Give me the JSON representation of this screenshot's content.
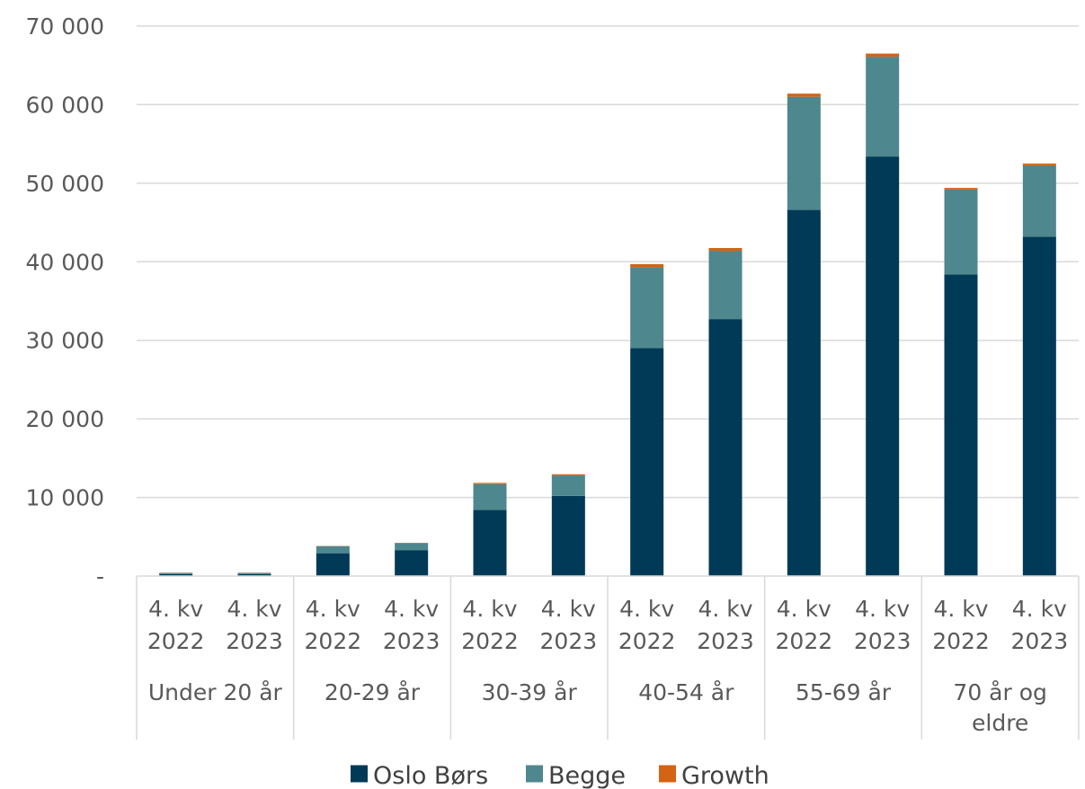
{
  "chart_data": {
    "type": "bar",
    "stacked": true,
    "title": "",
    "xlabel": "",
    "ylabel": "",
    "ylim": [
      0,
      70000
    ],
    "yticks": [
      0,
      10000,
      20000,
      30000,
      40000,
      50000,
      60000,
      70000
    ],
    "ytick_labels": [
      "-",
      "10 000",
      "20 000",
      "30 000",
      "40 000",
      "50 000",
      "60 000",
      "70 000"
    ],
    "grid": true,
    "legend_position": "bottom",
    "groups": [
      {
        "label": [
          "Under 20 år"
        ],
        "categories": [
          [
            "4. kv",
            "2022"
          ],
          [
            "4. kv",
            "2023"
          ]
        ]
      },
      {
        "label": [
          "20-29 år"
        ],
        "categories": [
          [
            "4. kv",
            "2022"
          ],
          [
            "4. kv",
            "2023"
          ]
        ]
      },
      {
        "label": [
          "30-39 år"
        ],
        "categories": [
          [
            "4. kv",
            "2022"
          ],
          [
            "4. kv",
            "2023"
          ]
        ]
      },
      {
        "label": [
          "40-54 år"
        ],
        "categories": [
          [
            "4. kv",
            "2022"
          ],
          [
            "4. kv",
            "2023"
          ]
        ]
      },
      {
        "label": [
          "55-69 år"
        ],
        "categories": [
          [
            "4. kv",
            "2022"
          ],
          [
            "4. kv",
            "2023"
          ]
        ]
      },
      {
        "label": [
          "70 år og",
          "eldre"
        ],
        "categories": [
          [
            "4. kv",
            "2022"
          ],
          [
            "4. kv",
            "2023"
          ]
        ]
      }
    ],
    "series": [
      {
        "name": "Oslo Børs",
        "color": "#003a57",
        "values": [
          250,
          250,
          2900,
          3300,
          8400,
          10200,
          29000,
          32700,
          46600,
          53400,
          38400,
          43200
        ]
      },
      {
        "name": "Begge",
        "color": "#4e878e",
        "values": [
          150,
          150,
          900,
          900,
          3300,
          2600,
          10300,
          8700,
          14400,
          12700,
          10800,
          9100
        ]
      },
      {
        "name": "Growth",
        "color": "#d46313",
        "values": [
          20,
          20,
          30,
          30,
          150,
          150,
          400,
          350,
          400,
          400,
          200,
          200
        ]
      }
    ]
  }
}
